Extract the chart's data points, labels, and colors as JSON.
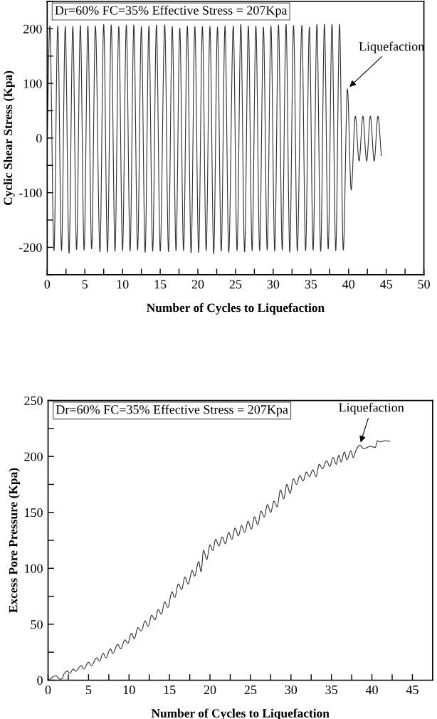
{
  "chart_data": [
    {
      "type": "line",
      "title": "Dr=60% FC=35% Effective Stress = 207Kpa",
      "xlabel": "Number of Cycles to Liquefaction",
      "ylabel": "Cyclic Shear Stress (Kpa)",
      "annotations": [
        {
          "text": "Liquefaction",
          "x": 39.85,
          "y": 90
        }
      ],
      "xlim": [
        0,
        50
      ],
      "ylim": [
        -250,
        250
      ],
      "xticks": [
        0,
        {
          "value": 2.5,
          "label": null
        },
        5,
        {
          "value": 7.5,
          "label": null
        },
        10,
        {
          "value": 12.5,
          "label": null
        },
        15,
        {
          "value": 17.5,
          "label": null
        },
        20,
        {
          "value": 22.5,
          "label": null
        },
        25,
        {
          "value": 27.5,
          "label": null
        },
        30,
        {
          "value": 32.5,
          "label": null
        },
        35,
        {
          "value": 37.5,
          "label": null
        },
        40,
        {
          "value": 42.5,
          "label": null
        },
        45,
        {
          "value": 47.5,
          "label": null
        },
        50
      ],
      "yticks": [
        {
          "value": -250,
          "label": null
        },
        -200,
        {
          "value": -150,
          "label": null
        },
        -100,
        {
          "value": -50,
          "label": null
        },
        0,
        {
          "value": 50,
          "label": null
        },
        100,
        {
          "value": 150,
          "label": null
        },
        200,
        {
          "value": 250,
          "label": null
        }
      ],
      "grid": false,
      "legend": false,
      "marker": "none",
      "line_style": "solid",
      "series": [
        {
          "color": "#303030",
          "x": [
            0,
            0.35,
            0.9,
            1.4,
            1.9,
            2.4,
            2.9,
            3.4,
            3.9,
            4.4,
            4.9,
            5.4,
            5.9,
            6.4,
            7.0,
            7.5,
            8.0,
            8.5,
            9.0,
            9.5,
            10.0,
            10.5,
            11.0,
            11.5,
            12.0,
            12.5,
            13.0,
            13.5,
            14.0,
            14.5,
            15.0,
            15.6,
            16.1,
            16.6,
            17.1,
            17.6,
            18.1,
            18.6,
            19.1,
            19.6,
            20.1,
            20.6,
            21.1,
            21.6,
            22.1,
            22.6,
            23.1,
            23.6,
            24.1,
            24.7,
            25.2,
            25.7,
            26.2,
            26.7,
            27.2,
            27.7,
            28.2,
            28.7,
            29.2,
            29.7,
            30.2,
            30.7,
            31.2,
            31.7,
            32.2,
            32.7,
            33.2,
            33.8,
            34.3,
            34.8,
            35.3,
            35.8,
            36.3,
            36.8,
            37.3,
            37.8,
            38.3,
            38.8,
            39.3,
            39.85,
            40.35,
            40.9,
            41.4,
            41.9,
            42.4,
            42.9,
            43.4,
            43.9,
            44.35
          ],
          "values": [
            0,
            205,
            -206,
            205,
            -206,
            204,
            -211,
            204,
            -204,
            206,
            -205,
            205,
            -203,
            205,
            -208,
            208,
            -209,
            207,
            -207,
            204,
            -206,
            207,
            -207,
            207,
            -205,
            204,
            -209,
            205,
            -207,
            207,
            -207,
            207,
            -208,
            204,
            -206,
            201,
            -206,
            205,
            -210,
            204,
            -209,
            204,
            -206,
            204,
            -212,
            203,
            -207,
            205,
            -209,
            205,
            -206,
            208,
            -208,
            205,
            -206,
            205,
            -206,
            203,
            -205,
            205,
            -207,
            207,
            -205,
            208,
            -209,
            206,
            -207,
            206,
            -206,
            203,
            -205,
            208,
            -207,
            208,
            -203,
            208,
            -206,
            208,
            -205,
            90,
            -95,
            40,
            -42,
            40,
            -42,
            40,
            -42,
            40,
            -32
          ]
        }
      ]
    },
    {
      "type": "line",
      "title": "Dr=60% FC=35% Effective Stress = 207Kpa",
      "xlabel": "Number of Cycles to Liquefaction",
      "ylabel": "Excess Pore Pressure (Kpa)",
      "annotations": [
        {
          "text": "Liquefaction",
          "x": 38.5,
          "y": 210
        }
      ],
      "xlim": [
        0,
        47.5
      ],
      "ylim": [
        0,
        250
      ],
      "xticks": [
        0,
        {
          "value": 2.5,
          "label": null
        },
        5,
        {
          "value": 7.5,
          "label": null
        },
        10,
        {
          "value": 12.5,
          "label": null
        },
        15,
        {
          "value": 17.5,
          "label": null
        },
        20,
        {
          "value": 22.5,
          "label": null
        },
        25,
        {
          "value": 27.5,
          "label": null
        },
        30,
        {
          "value": 32.5,
          "label": null
        },
        35,
        {
          "value": 37.5,
          "label": null
        },
        40,
        {
          "value": 42.5,
          "label": null
        },
        45
      ],
      "yticks": [
        0,
        {
          "value": 25,
          "label": null
        },
        50,
        {
          "value": 75,
          "label": null
        },
        100,
        {
          "value": 125,
          "label": null
        },
        150,
        {
          "value": 175,
          "label": null
        },
        200,
        {
          "value": 225,
          "label": null
        },
        250
      ],
      "grid": false,
      "legend": false,
      "marker": "none",
      "line_style": "solid",
      "series": [
        {
          "color": "#303030",
          "x": [
            0.0,
            1.0,
            1.4,
            1.7,
            2.0,
            2.4,
            2.7,
            3.1,
            3.4,
            4.1,
            4.4,
            5.0,
            5.35,
            6.0,
            6.35,
            6.8,
            7.15,
            7.7,
            8.0,
            8.6,
            8.95,
            9.5,
            9.85,
            10.3,
            10.65,
            11.1,
            11.5,
            12.0,
            12.35,
            12.8,
            13.2,
            13.6,
            14.0,
            14.4,
            14.8,
            15.3,
            15.65,
            16.1,
            16.5,
            16.9,
            17.3,
            17.8,
            18.1,
            18.6,
            18.9,
            19.2,
            19.6,
            20.0,
            20.35,
            20.7,
            21.1,
            21.5,
            21.9,
            22.3,
            22.7,
            23.1,
            23.5,
            23.9,
            24.3,
            24.7,
            25.1,
            25.5,
            25.9,
            26.3,
            26.7,
            27.1,
            27.5,
            27.9,
            28.3,
            28.7,
            29.1,
            29.5,
            29.9,
            30.3,
            30.7,
            31.1,
            31.5,
            31.9,
            32.3,
            32.7,
            33.1,
            33.5,
            33.9,
            34.4,
            34.8,
            35.2,
            35.6,
            35.9,
            36.2,
            36.6,
            36.9,
            37.4,
            37.7,
            38.0,
            38.5,
            39.0,
            39.8,
            40.4,
            40.7,
            41.0,
            41.6,
            42.2
          ],
          "values": [
            0,
            4,
            1,
            1,
            6,
            8,
            6,
            10,
            8,
            13,
            10,
            16,
            13,
            20,
            17,
            24,
            20,
            28,
            24,
            32,
            28,
            36,
            33,
            42,
            37,
            47,
            44,
            53,
            48,
            58,
            54,
            63,
            59,
            70,
            65,
            79,
            74,
            86,
            81,
            92,
            86,
            98,
            93,
            106,
            97,
            116,
            108,
            121,
            116,
            126,
            120,
            128,
            122,
            132,
            126,
            136,
            129,
            138,
            132,
            142,
            135,
            146,
            139,
            151,
            146,
            157,
            150,
            160,
            155,
            170,
            162,
            175,
            167,
            180,
            175,
            183,
            178,
            186,
            182,
            188,
            182,
            193,
            189,
            196,
            191,
            199,
            193,
            201,
            195,
            204,
            197,
            205,
            199,
            205,
            210,
            207,
            209,
            208,
            214,
            213,
            214,
            213.5
          ]
        }
      ]
    }
  ]
}
